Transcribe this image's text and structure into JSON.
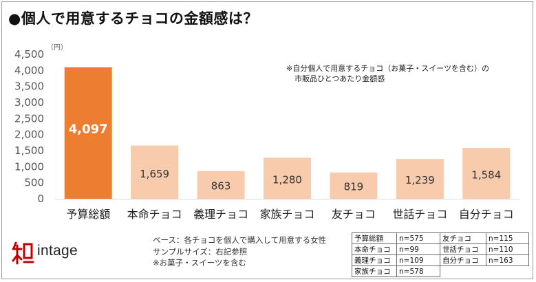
{
  "title": "●個人で用意するチョコの金額感は？",
  "chart_data": {
    "type": "bar",
    "unit_label": "（円）",
    "categories": [
      "予算総額",
      "本命チョコ",
      "義理チョコ",
      "家族チョコ",
      "友チョコ",
      "世話チョコ",
      "自分チョコ"
    ],
    "values": [
      4097,
      1659,
      863,
      1280,
      819,
      1239,
      1584
    ],
    "value_labels": [
      "4,097",
      "1,659",
      "863",
      "1,280",
      "819",
      "1,239",
      "1,584"
    ],
    "ylim": [
      0,
      4500
    ],
    "yticks": [
      "0",
      "500",
      "1,000",
      "1,500",
      "2,000",
      "2,500",
      "3,000",
      "3,500",
      "4,000",
      "4,500"
    ],
    "highlight_index": 0,
    "colors": {
      "highlight": "#ED7D31",
      "bar": "#F8CBAD",
      "axis": "#d9d9d9"
    }
  },
  "note": {
    "line1": "※自分個人で用意するチョコ（お菓子・スイーツを含む）の",
    "line2": "市販品ひとつあたり金額感"
  },
  "base": {
    "line1": "ベース：各チョコを個人で購入して用意する女性",
    "line2": "サンプルサイズ：右記参照",
    "line3": "※お菓子・スイーツを含む"
  },
  "logo": {
    "text": "intage",
    "mark_color": "#C00000"
  },
  "samples": [
    [
      "予算総額",
      "n=575",
      "友チョコ",
      "n=115"
    ],
    [
      "本命チョコ",
      "n=99",
      "世話チョコ",
      "n=110"
    ],
    [
      "義理チョコ",
      "n=109",
      "自分チョコ",
      "n=163"
    ],
    [
      "家族チョコ",
      "n=578",
      "",
      ""
    ]
  ]
}
